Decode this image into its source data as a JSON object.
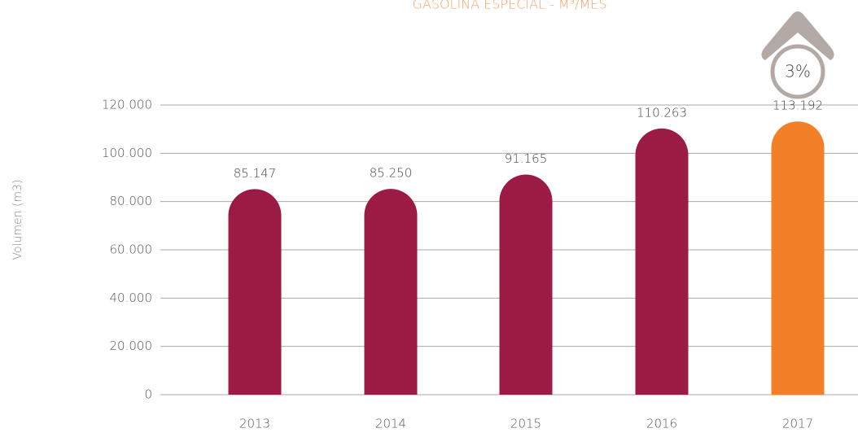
{
  "chart_data": {
    "type": "bar",
    "title": "GASOLINA ESPECIAL - M³/MES",
    "y_label": "Volumen (m3)",
    "annotation": "3%",
    "categories": [
      "2013",
      "2014",
      "2015",
      "2016",
      "2017"
    ],
    "values": [
      85147,
      85250,
      91165,
      110263,
      113192
    ],
    "value_labels": [
      "85.147",
      "85.250",
      "91.165",
      "110.263",
      "113.192"
    ],
    "colors": [
      "#9b1b45",
      "#9b1b45",
      "#9b1b45",
      "#9b1b45",
      "#f47f29"
    ],
    "ylim": [
      0,
      120000
    ],
    "yticks": [
      0,
      {
        "value": 20000,
        "label": "20.000"
      },
      {
        "value": 40000,
        "label": "40.000"
      },
      {
        "value": 60000,
        "label": "60.000"
      },
      {
        "value": 80000,
        "label": "80.000"
      },
      {
        "value": 100000,
        "label": "100.000"
      },
      {
        "value": 120000,
        "label": "120.000"
      }
    ],
    "grid": true
  }
}
